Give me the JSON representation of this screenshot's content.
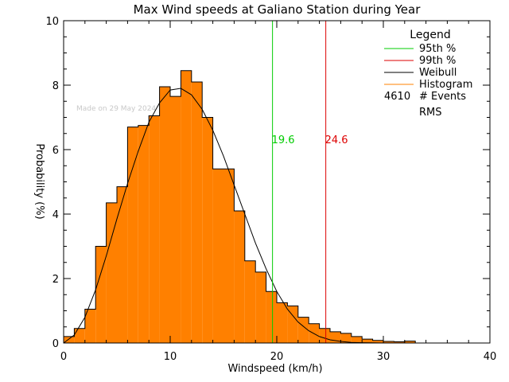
{
  "chart_data": {
    "type": "bar",
    "title": "Max Wind speeds at Galiano Station during Year",
    "xlabel": "Windspeed (km/h)",
    "ylabel": "Probability (%)",
    "xlim": [
      0,
      40
    ],
    "ylim": [
      0,
      10
    ],
    "x_ticks": [
      "0",
      "10",
      "20",
      "30",
      "40"
    ],
    "y_ticks": [
      "0",
      "2",
      "4",
      "6",
      "8",
      "10"
    ],
    "bin_width": 1,
    "bin_starts": [
      0,
      1,
      2,
      3,
      4,
      5,
      6,
      7,
      8,
      9,
      10,
      11,
      12,
      13,
      14,
      15,
      16,
      17,
      18,
      19,
      20,
      21,
      22,
      23,
      24,
      25,
      26,
      27,
      28,
      29,
      30,
      31,
      32,
      33
    ],
    "values": [
      0.2,
      0.45,
      1.05,
      3.0,
      4.35,
      4.85,
      6.7,
      6.75,
      7.05,
      7.95,
      7.65,
      8.45,
      8.1,
      7.0,
      5.4,
      5.4,
      4.1,
      2.55,
      2.2,
      1.6,
      1.25,
      1.15,
      0.8,
      0.6,
      0.45,
      0.35,
      0.3,
      0.2,
      0.12,
      0.08,
      0.05,
      0.04,
      0.06,
      0.0
    ],
    "weibull_curve": {
      "x": [
        0,
        1,
        2,
        3,
        4,
        5,
        6,
        7,
        8,
        9,
        10,
        11,
        12,
        13,
        14,
        15,
        16,
        17,
        18,
        19,
        20,
        21,
        22,
        23,
        24,
        25,
        26,
        27,
        28,
        29,
        30
      ],
      "y": [
        0,
        0.25,
        0.8,
        1.65,
        2.7,
        3.85,
        4.95,
        5.95,
        6.85,
        7.45,
        7.85,
        7.9,
        7.7,
        7.25,
        6.6,
        5.8,
        4.9,
        4.0,
        3.1,
        2.3,
        1.6,
        1.05,
        0.65,
        0.38,
        0.2,
        0.1,
        0.05,
        0.02,
        0.01,
        0.005,
        0.0
      ]
    },
    "vlines": [
      {
        "name": "95th %",
        "x": 19.6,
        "label": "19.6",
        "color": "#00cc00"
      },
      {
        "name": "99th %",
        "x": 24.6,
        "label": "24.6",
        "color": "#dd0000"
      }
    ],
    "legend": {
      "title": "Legend",
      "placement": "top-right",
      "items": [
        {
          "label": "95th %",
          "color": "#00cc00"
        },
        {
          "label": "99th %",
          "color": "#dd0000"
        },
        {
          "label": "Weibull",
          "color": "#000000"
        },
        {
          "label": "Histogram",
          "color": "#ff8000"
        }
      ],
      "events_count": "4610",
      "events_label": "# Events",
      "rms_label": "RMS"
    },
    "watermark": "Made on 29 May 2024",
    "colors": {
      "histogram_fill": "#ff8000",
      "outline": "#000000"
    },
    "grid": false
  }
}
